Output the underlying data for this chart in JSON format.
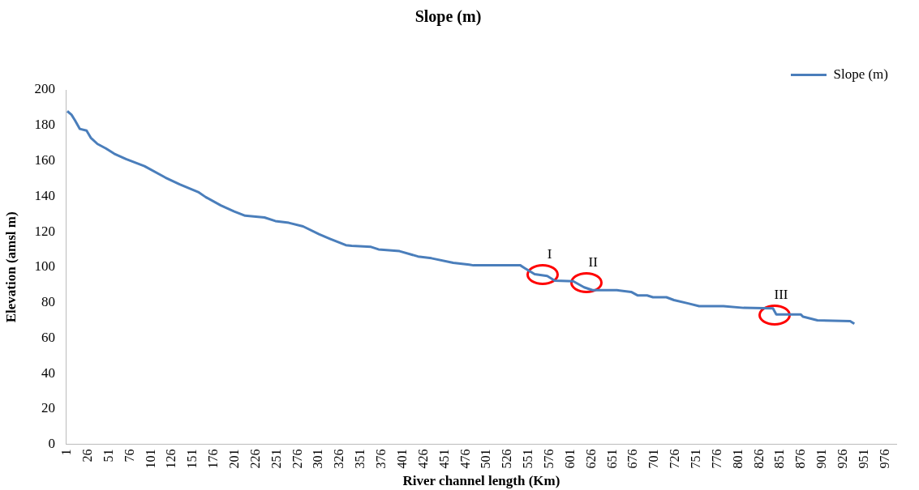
{
  "chart_data": {
    "type": "line",
    "title": "Slope (m)",
    "xlabel": "River channel length (Km)",
    "ylabel": "Elevation (amsl m)",
    "xlim": [
      0,
      989
    ],
    "xticks": [
      1,
      26,
      51,
      76,
      101,
      126,
      151,
      176,
      201,
      226,
      251,
      276,
      301,
      326,
      351,
      376,
      401,
      426,
      451,
      476,
      501,
      526,
      551,
      576,
      601,
      626,
      651,
      676,
      701,
      726,
      751,
      776,
      801,
      826,
      851,
      876,
      901,
      926,
      951,
      976
    ],
    "ylim": [
      0,
      200
    ],
    "yticks": [
      0,
      20,
      40,
      60,
      80,
      100,
      120,
      140,
      160,
      180,
      200
    ],
    "grid": false,
    "legend": "top right",
    "marker": "none",
    "line_style": "solid",
    "series": [
      {
        "name": "Slope (m)",
        "color": "#4a7ebb",
        "x": [
          1,
          6,
          10,
          16,
          24,
          29,
          37,
          47,
          57,
          71,
          93,
          118,
          135,
          157,
          166,
          184,
          200,
          213,
          236,
          249,
          265,
          282,
          301,
          314,
          333,
          340,
          363,
          372,
          397,
          419,
          435,
          461,
          480,
          485,
          541,
          546,
          558,
          573,
          582,
          604,
          617,
          627,
          656,
          673,
          681,
          692,
          699,
          715,
          724,
          741,
          754,
          783,
          807,
          842,
          846,
          875,
          878,
          895,
          934,
          939
        ],
        "values": [
          188,
          186,
          183,
          178,
          177,
          173,
          169.5,
          167,
          164,
          161,
          157,
          150.5,
          146.7,
          142.4,
          139.5,
          134.8,
          131.4,
          129,
          128,
          126,
          125,
          123,
          118.6,
          116,
          112.4,
          112,
          111.4,
          110,
          109,
          106,
          105,
          102.4,
          101.4,
          101,
          101,
          99.5,
          96,
          95,
          92.4,
          92,
          88.6,
          87,
          87,
          86,
          84,
          84,
          83,
          83,
          81.4,
          79.5,
          78,
          78,
          77,
          76.7,
          73.3,
          73.3,
          72,
          70,
          69.5,
          68
        ]
      }
    ],
    "annotations": [
      {
        "text": "I",
        "x": 568,
        "y": 96
      },
      {
        "text": "II",
        "x": 620,
        "y": 91
      },
      {
        "text": "III",
        "x": 844,
        "y": 73
      }
    ]
  }
}
